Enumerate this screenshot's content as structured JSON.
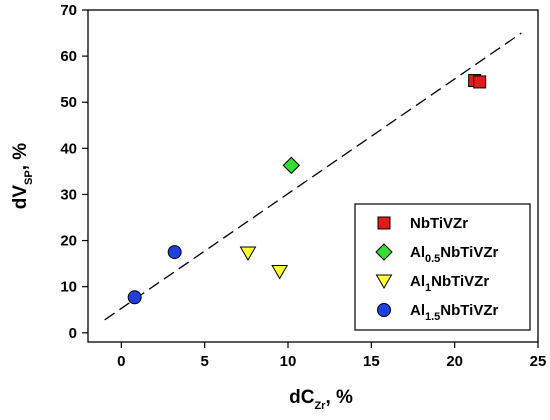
{
  "chart_data": {
    "type": "scatter",
    "title": "",
    "xlabel": {
      "main": "dC",
      "sub": "Zr",
      "rest": ", %"
    },
    "ylabel": {
      "main": "dV",
      "sub": "SP",
      "rest": ", %"
    },
    "xlim": [
      -2,
      25
    ],
    "ylim": [
      -2,
      70
    ],
    "xticks": [
      0,
      5,
      10,
      15,
      20,
      25
    ],
    "yticks": [
      0,
      10,
      20,
      30,
      40,
      50,
      60,
      70
    ],
    "grid": false,
    "legend_position": "bottom-right",
    "series": [
      {
        "name": "NbTiVZr",
        "legend": {
          "pre": "NbTiVZr",
          "sub": "",
          "post": ""
        },
        "marker": "square",
        "color": "#e31a1c",
        "points": [
          [
            21.2,
            54.7
          ],
          [
            21.5,
            54.4
          ]
        ]
      },
      {
        "name": "Al0.5NbTiVZr",
        "legend": {
          "pre": "Al",
          "sub": "0.5",
          "post": "NbTiVZr"
        },
        "marker": "diamond",
        "color": "#33dd33",
        "points": [
          [
            10.2,
            36.3
          ]
        ]
      },
      {
        "name": "Al1NbTiVZr",
        "legend": {
          "pre": "Al",
          "sub": "1",
          "post": "NbTiVZr"
        },
        "marker": "triangle-down",
        "color": "#ffff33",
        "points": [
          [
            7.6,
            17.3
          ],
          [
            9.5,
            13.3
          ]
        ]
      },
      {
        "name": "Al1.5NbTiVZr",
        "legend": {
          "pre": "Al",
          "sub": "1.5",
          "post": "NbTiVZr"
        },
        "marker": "circle",
        "color": "#1f3fe0",
        "points": [
          [
            0.8,
            7.7
          ],
          [
            3.2,
            17.5
          ]
        ]
      }
    ],
    "trendline": {
      "style": "dashed",
      "x": [
        -1,
        24
      ],
      "y": [
        2.8,
        65
      ]
    }
  }
}
